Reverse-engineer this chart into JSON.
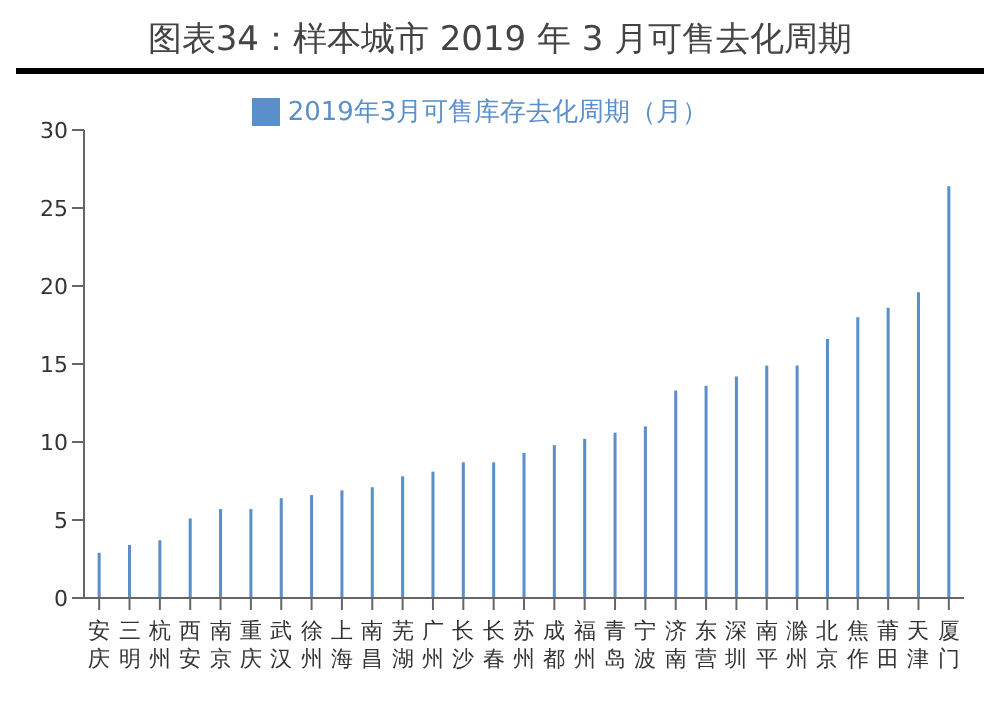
{
  "chart_data": {
    "type": "bar",
    "title": "图表34：样本城市 2019 年 3 月可售去化周期",
    "categories": [
      "安庆",
      "三明",
      "杭州",
      "西安",
      "南京",
      "重庆",
      "武汉",
      "徐州",
      "上海",
      "南昌",
      "芜湖",
      "广州",
      "长沙",
      "长春",
      "苏州",
      "成都",
      "福州",
      "青岛",
      "宁波",
      "济南",
      "东营",
      "深圳",
      "南平",
      "滁州",
      "北京",
      "焦作",
      "莆田",
      "天津",
      "厦门"
    ],
    "series": [
      {
        "name": "2019年3月可售库存去化周期（月）",
        "color": "#5b8fc9",
        "values": [
          2.9,
          3.4,
          3.7,
          5.1,
          5.7,
          5.7,
          6.4,
          6.6,
          6.9,
          7.1,
          7.8,
          8.1,
          8.7,
          8.7,
          9.3,
          9.8,
          10.2,
          10.6,
          11.0,
          13.3,
          13.6,
          14.2,
          14.9,
          14.9,
          16.6,
          18.0,
          18.6,
          19.6,
          26.4
        ]
      }
    ],
    "ylim": [
      0,
      30
    ],
    "yticks": [
      0,
      5,
      10,
      15,
      20,
      25,
      30
    ],
    "grid": false,
    "legend": "top"
  }
}
